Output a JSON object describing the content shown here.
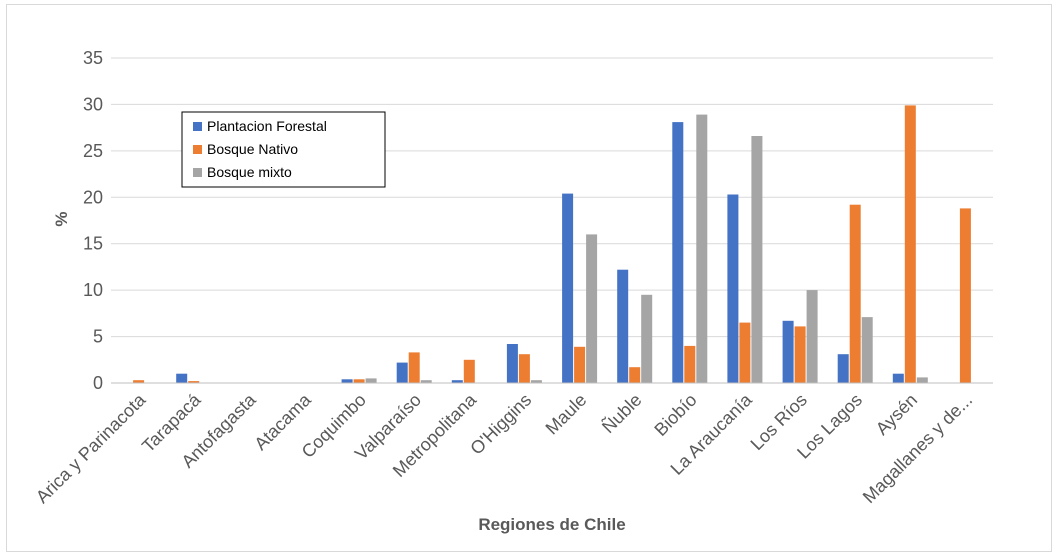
{
  "chart_data": {
    "type": "bar",
    "title": "",
    "xlabel": "Regiones de Chile",
    "ylabel": "%",
    "ylim": [
      0,
      35
    ],
    "yticks": [
      0,
      5,
      10,
      15,
      20,
      25,
      30,
      35
    ],
    "grid": true,
    "legend_position": "top-left",
    "categories": [
      "Arica y Parinacota",
      "Tarapacá",
      "Antofagasta",
      "Atacama",
      "Coquimbo",
      "Valparaíso",
      "Metropolitana",
      "O'Higgins",
      "Maule",
      "Ñuble",
      "Biobío",
      "La Araucanía",
      "Los Ríos",
      "Los Lagos",
      "Aysén",
      "Magallanes y de..."
    ],
    "series": [
      {
        "name": "Plantacion Forestal",
        "color": "#4472c4",
        "values": [
          0,
          1.0,
          0.05,
          0.05,
          0.4,
          2.2,
          0.3,
          4.2,
          20.4,
          12.2,
          28.1,
          20.3,
          6.7,
          3.1,
          1.0,
          0
        ]
      },
      {
        "name": "Bosque Nativo",
        "color": "#ed7d31",
        "values": [
          0.3,
          0.2,
          0.05,
          0.05,
          0.4,
          3.3,
          2.5,
          3.1,
          3.9,
          1.7,
          4.0,
          6.5,
          6.1,
          19.2,
          29.9,
          18.8
        ]
      },
      {
        "name": "Bosque mixto",
        "color": "#a5a5a5",
        "values": [
          0.05,
          0.05,
          0.05,
          0.05,
          0.5,
          0.3,
          0.05,
          0.3,
          16.0,
          9.5,
          28.9,
          26.6,
          10.0,
          7.1,
          0.6,
          0
        ]
      }
    ]
  }
}
